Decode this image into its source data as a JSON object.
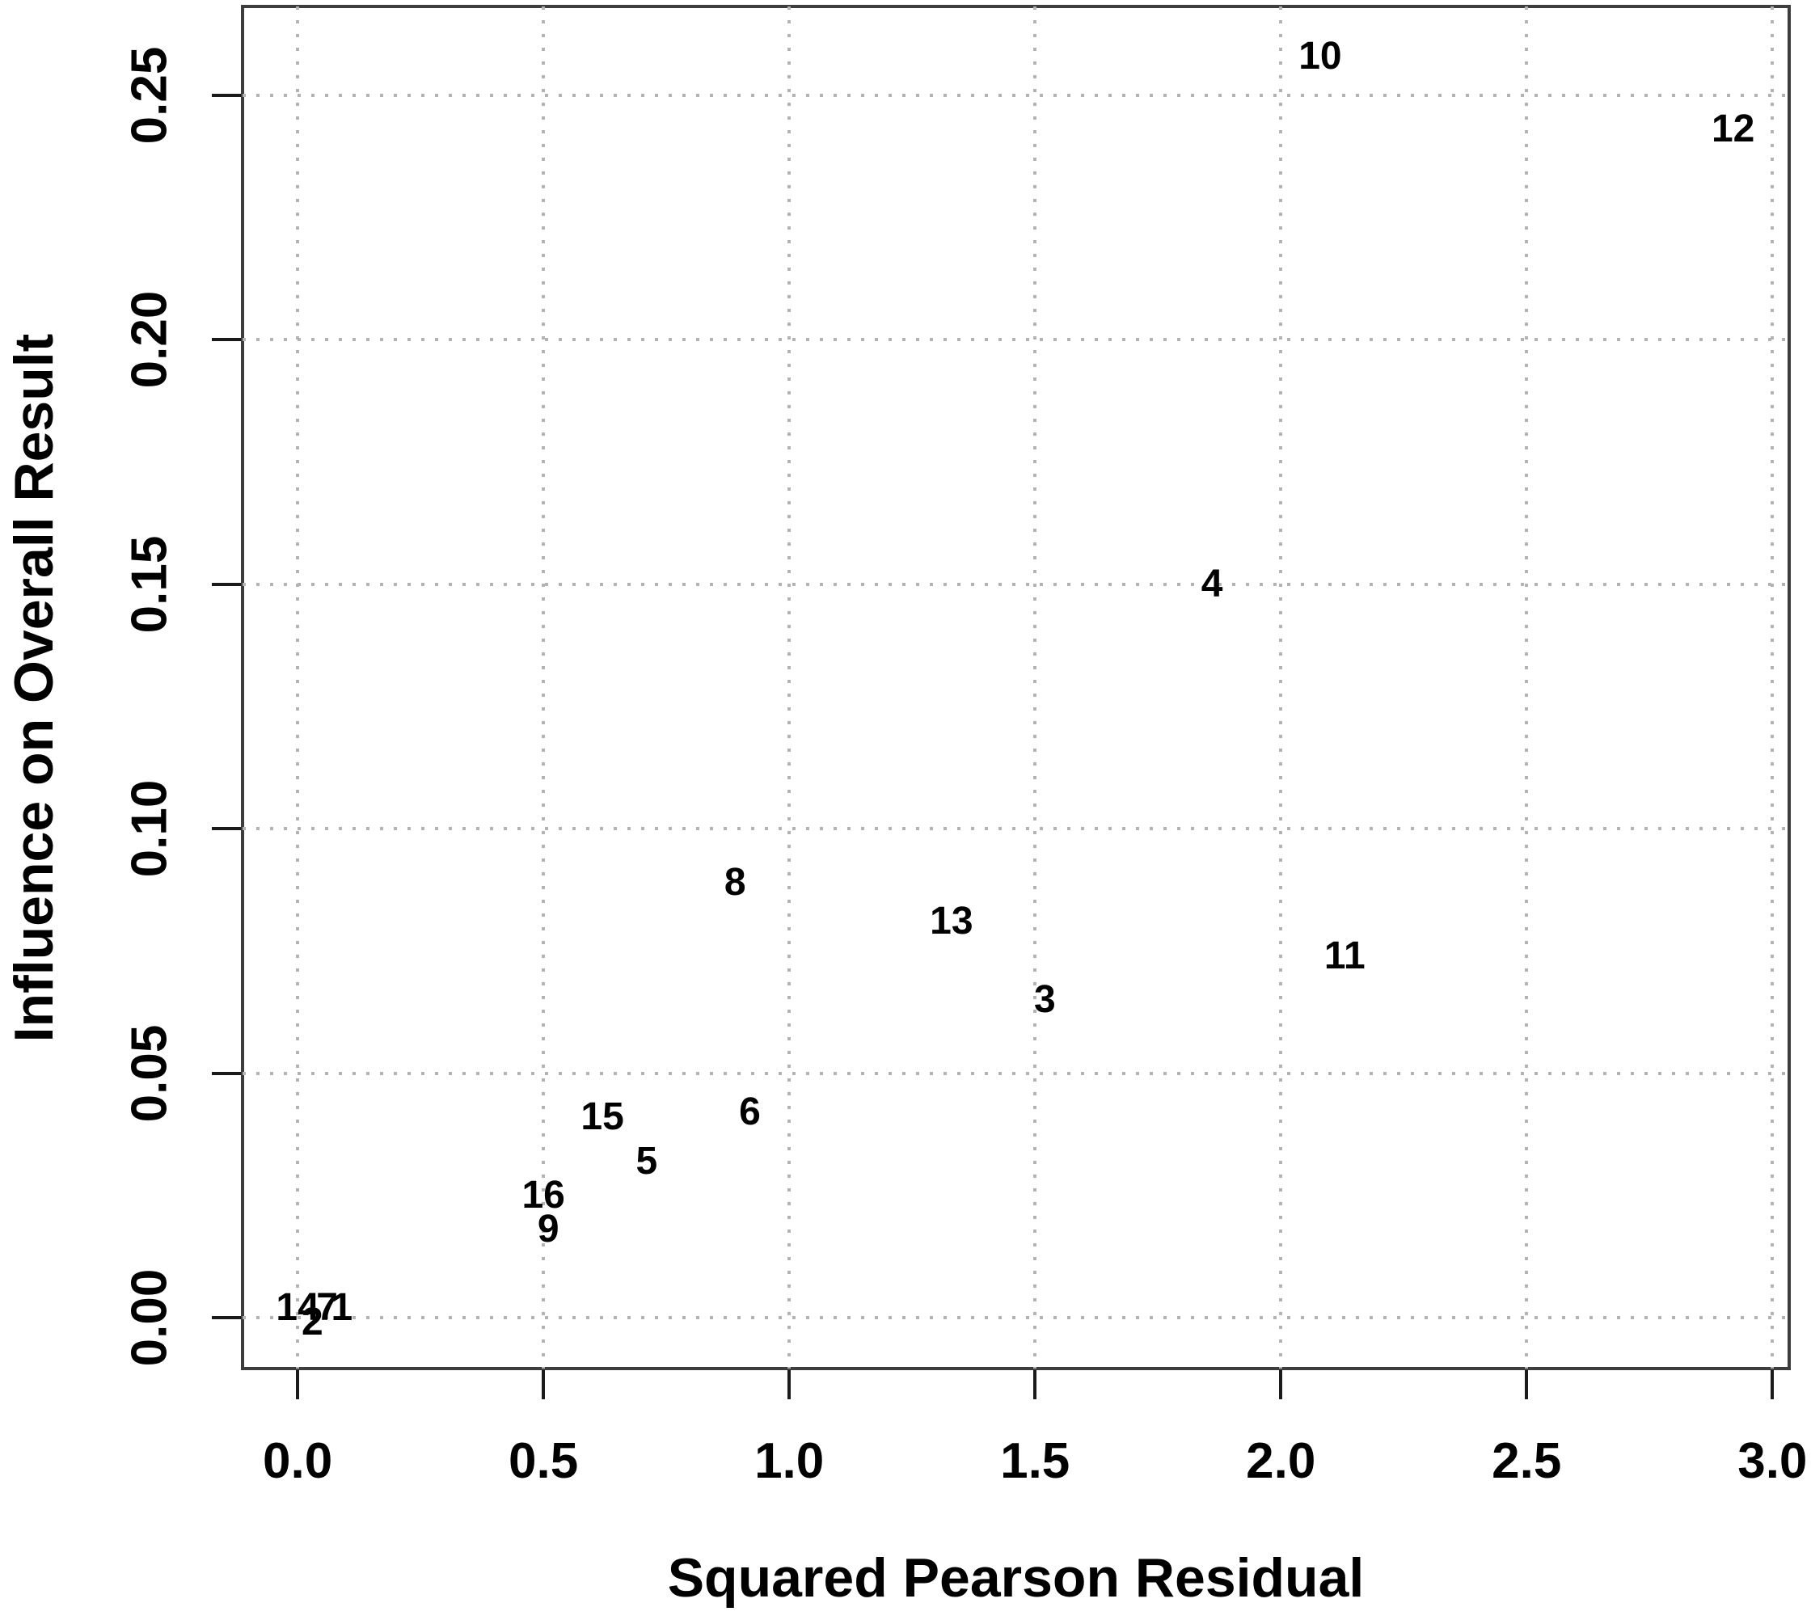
{
  "chart_data": {
    "type": "scatter",
    "title": "",
    "xlabel": "Squared Pearson Residual",
    "ylabel": "Influence on Overall Result",
    "xlim": [
      -0.112,
      3.034
    ],
    "ylim": [
      -0.0104,
      0.2682
    ],
    "grid": true,
    "grid_style": "dotted",
    "legend": null,
    "point_style": "numeric-text-labels",
    "x_ticks": [
      0.0,
      0.5,
      1.0,
      1.5,
      2.0,
      2.5,
      3.0
    ],
    "x_tick_labels": [
      "0.0",
      "0.5",
      "1.0",
      "1.5",
      "2.0",
      "2.5",
      "3.0"
    ],
    "y_ticks": [
      0.0,
      0.05,
      0.1,
      0.15,
      0.2,
      0.25
    ],
    "y_tick_labels": [
      "0.00",
      "0.05",
      "0.10",
      "0.15",
      "0.20",
      "0.25"
    ],
    "points": [
      {
        "label": "1",
        "x": 0.09,
        "y": 0.002
      },
      {
        "label": "2",
        "x": 0.03,
        "y": -0.001
      },
      {
        "label": "3",
        "x": 1.52,
        "y": 0.065
      },
      {
        "label": "4",
        "x": 1.86,
        "y": 0.15
      },
      {
        "label": "5",
        "x": 0.71,
        "y": 0.032
      },
      {
        "label": "6",
        "x": 0.92,
        "y": 0.042
      },
      {
        "label": "7",
        "x": 0.06,
        "y": 0.002
      },
      {
        "label": "8",
        "x": 0.89,
        "y": 0.089
      },
      {
        "label": "9",
        "x": 0.51,
        "y": 0.018
      },
      {
        "label": "10",
        "x": 2.08,
        "y": 0.258
      },
      {
        "label": "11",
        "x": 2.13,
        "y": 0.074
      },
      {
        "label": "12",
        "x": 2.92,
        "y": 0.243
      },
      {
        "label": "13",
        "x": 1.33,
        "y": 0.081
      },
      {
        "label": "14",
        "x": 0.0,
        "y": 0.002
      },
      {
        "label": "15",
        "x": 0.62,
        "y": 0.041
      },
      {
        "label": "16",
        "x": 0.5,
        "y": 0.025
      }
    ],
    "colors": {
      "text": "#000000",
      "grid": "#b3b3b3",
      "box": "#3d3d3d",
      "tick": "#1a1a1a",
      "background": "#ffffff"
    }
  }
}
